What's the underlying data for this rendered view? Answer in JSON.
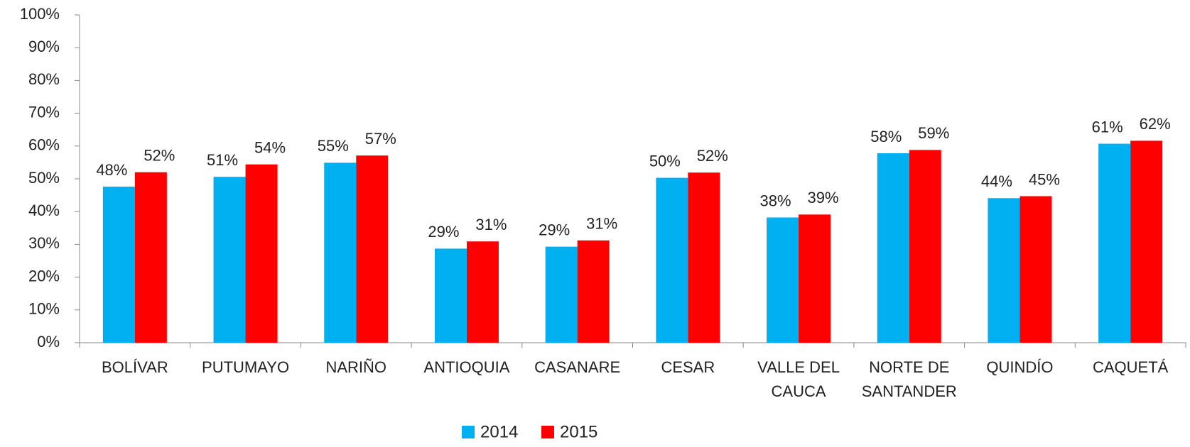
{
  "chart_data": {
    "type": "bar",
    "categories": [
      "BOLÍVAR",
      "PUTUMAYO",
      "NARIÑO",
      "ANTIOQUIA",
      "CASANARE",
      "CESAR",
      "VALLE DEL CAUCA",
      "NORTE DE SANTANDER",
      "QUINDÍO",
      "CAQUETÁ"
    ],
    "series": [
      {
        "name": "2014",
        "color": "#00b0f0",
        "values": [
          47.6,
          50.6,
          54.9,
          28.7,
          29.3,
          50.3,
          38.2,
          57.8,
          44.1,
          60.7
        ],
        "value_labels": [
          "48%",
          "51%",
          "55%",
          "29%",
          "29%",
          "50%",
          "38%",
          "58%",
          "44%",
          "61%"
        ]
      },
      {
        "name": "2015",
        "color": "#ff0000",
        "values": [
          52.0,
          54.4,
          57.1,
          30.9,
          31.2,
          51.9,
          39.1,
          58.8,
          44.7,
          61.6
        ],
        "value_labels": [
          "52%",
          "54%",
          "57%",
          "31%",
          "31%",
          "52%",
          "39%",
          "59%",
          "45%",
          "62%"
        ]
      }
    ],
    "ylim": [
      0,
      100
    ],
    "yticks": [
      {
        "value": 0,
        "label": "0%"
      },
      {
        "value": 10,
        "label": "10%"
      },
      {
        "value": 20,
        "label": "20%"
      },
      {
        "value": 30,
        "label": "30%"
      },
      {
        "value": 40,
        "label": "40%"
      },
      {
        "value": 50,
        "label": "50%"
      },
      {
        "value": 60,
        "label": "60%"
      },
      {
        "value": 70,
        "label": "70%"
      },
      {
        "value": 80,
        "label": "80%"
      },
      {
        "value": 90,
        "label": "90%"
      },
      {
        "value": 100,
        "label": "100%"
      }
    ],
    "grid": false,
    "legend": "bottom"
  }
}
